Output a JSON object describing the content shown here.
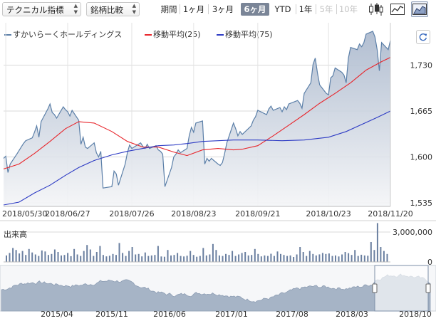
{
  "toolbar": {
    "technical_label": "テクニカル指標",
    "compare_label": "銘柄比較",
    "period_label": "期間",
    "periods": [
      {
        "label": "1ヶ月",
        "state": "normal"
      },
      {
        "label": "3ヶ月",
        "state": "normal"
      },
      {
        "label": "6ヶ月",
        "state": "selected"
      },
      {
        "label": "YTD",
        "state": "normal"
      },
      {
        "label": "1年",
        "state": "normal"
      },
      {
        "label": "5年",
        "state": "disabled"
      },
      {
        "label": "10年",
        "state": "disabled"
      }
    ],
    "icons": [
      "candlestick-icon",
      "line-chart-icon",
      "area-chart-icon"
    ],
    "selected_icon": "area-chart-icon"
  },
  "legend": {
    "price": "すかいらーくホールディングス",
    "ma25": "移動平均(25)",
    "ma75": "移動平均(75)"
  },
  "colors": {
    "price_line": "#5b7fa8",
    "area_top": "#a9b7cc",
    "ma25": "#e8252b",
    "ma75": "#2d3bc4",
    "volume": "#6a7fa0",
    "overview_fill": "#a6b4c6"
  },
  "chart_data": [
    {
      "type": "line",
      "title": "",
      "series": [
        {
          "name": "すかいらーくホールディングス",
          "points": [
            [
              "2018/05/29",
              1598
            ],
            [
              "2018/05/30",
              1601
            ],
            [
              "2018/05/31",
              1578
            ],
            [
              "2018/06/01",
              1590
            ],
            [
              "2018/06/04",
              1604
            ],
            [
              "2018/06/05",
              1609
            ],
            [
              "2018/06/06",
              1614
            ],
            [
              "2018/06/07",
              1619
            ],
            [
              "2018/06/08",
              1623
            ],
            [
              "2018/06/11",
              1627
            ],
            [
              "2018/06/12",
              1635
            ],
            [
              "2018/06/13",
              1644
            ],
            [
              "2018/06/14",
              1628
            ],
            [
              "2018/06/15",
              1650
            ],
            [
              "2018/06/18",
              1668
            ],
            [
              "2018/06/19",
              1675
            ],
            [
              "2018/06/20",
              1663
            ],
            [
              "2018/06/21",
              1660
            ],
            [
              "2018/06/22",
              1655
            ],
            [
              "2018/06/25",
              1671
            ],
            [
              "2018/06/26",
              1667
            ],
            [
              "2018/06/27",
              1664
            ],
            [
              "2018/06/28",
              1658
            ],
            [
              "2018/06/29",
              1666
            ],
            [
              "2018/07/02",
              1652
            ],
            [
              "2018/07/03",
              1618
            ],
            [
              "2018/07/04",
              1628
            ],
            [
              "2018/07/05",
              1614
            ],
            [
              "2018/07/06",
              1612
            ],
            [
              "2018/07/09",
              1620
            ],
            [
              "2018/07/10",
              1606
            ],
            [
              "2018/07/11",
              1600
            ],
            [
              "2018/07/12",
              1608
            ],
            [
              "2018/07/13",
              1556
            ],
            [
              "2018/07/17",
              1558
            ],
            [
              "2018/07/18",
              1580
            ],
            [
              "2018/07/19",
              1576
            ],
            [
              "2018/07/20",
              1560
            ],
            [
              "2018/07/23",
              1590
            ],
            [
              "2018/07/24",
              1606
            ],
            [
              "2018/07/25",
              1617
            ],
            [
              "2018/07/26",
              1612
            ],
            [
              "2018/07/27",
              1614
            ],
            [
              "2018/07/30",
              1620
            ],
            [
              "2018/07/31",
              1615
            ],
            [
              "2018/08/01",
              1612
            ],
            [
              "2018/08/02",
              1618
            ],
            [
              "2018/08/03",
              1612
            ],
            [
              "2018/08/06",
              1616
            ],
            [
              "2018/08/07",
              1610
            ],
            [
              "2018/08/08",
              1608
            ],
            [
              "2018/08/09",
              1604
            ],
            [
              "2018/08/10",
              1558
            ],
            [
              "2018/08/13",
              1585
            ],
            [
              "2018/08/14",
              1600
            ],
            [
              "2018/08/15",
              1604
            ],
            [
              "2018/08/16",
              1610
            ],
            [
              "2018/08/17",
              1606
            ],
            [
              "2018/08/20",
              1612
            ],
            [
              "2018/08/21",
              1630
            ],
            [
              "2018/08/22",
              1642
            ],
            [
              "2018/08/23",
              1635
            ],
            [
              "2018/08/24",
              1648
            ],
            [
              "2018/08/27",
              1651
            ],
            [
              "2018/08/28",
              1590
            ],
            [
              "2018/08/29",
              1598
            ],
            [
              "2018/08/30",
              1594
            ],
            [
              "2018/08/31",
              1598
            ],
            [
              "2018/09/03",
              1590
            ],
            [
              "2018/09/04",
              1588
            ],
            [
              "2018/09/05",
              1592
            ],
            [
              "2018/09/06",
              1605
            ],
            [
              "2018/09/07",
              1620
            ],
            [
              "2018/09/10",
              1648
            ],
            [
              "2018/09/11",
              1640
            ],
            [
              "2018/09/12",
              1630
            ],
            [
              "2018/09/13",
              1636
            ],
            [
              "2018/09/14",
              1632
            ],
            [
              "2018/09/18",
              1644
            ],
            [
              "2018/09/19",
              1652
            ],
            [
              "2018/09/20",
              1657
            ],
            [
              "2018/09/21",
              1666
            ],
            [
              "2018/09/25",
              1660
            ],
            [
              "2018/09/26",
              1668
            ],
            [
              "2018/09/27",
              1672
            ],
            [
              "2018/09/28",
              1666
            ],
            [
              "2018/10/01",
              1670
            ],
            [
              "2018/10/02",
              1664
            ],
            [
              "2018/10/03",
              1671
            ],
            [
              "2018/10/04",
              1667
            ],
            [
              "2018/10/05",
              1675
            ],
            [
              "2018/10/09",
              1680
            ],
            [
              "2018/10/10",
              1676
            ],
            [
              "2018/10/11",
              1669
            ],
            [
              "2018/10/12",
              1690
            ],
            [
              "2018/10/15",
              1705
            ],
            [
              "2018/10/16",
              1731
            ],
            [
              "2018/10/17",
              1740
            ],
            [
              "2018/10/18",
              1719
            ],
            [
              "2018/10/19",
              1702
            ],
            [
              "2018/10/22",
              1690
            ],
            [
              "2018/10/23",
              1688
            ],
            [
              "2018/10/24",
              1712
            ],
            [
              "2018/10/25",
              1715
            ],
            [
              "2018/10/26",
              1726
            ],
            [
              "2018/10/29",
              1720
            ],
            [
              "2018/10/30",
              1716
            ],
            [
              "2018/10/31",
              1705
            ],
            [
              "2018/11/01",
              1740
            ],
            [
              "2018/11/02",
              1755
            ],
            [
              "2018/11/05",
              1752
            ],
            [
              "2018/11/06",
              1760
            ],
            [
              "2018/11/07",
              1756
            ],
            [
              "2018/11/08",
              1762
            ],
            [
              "2018/11/09",
              1774
            ],
            [
              "2018/11/12",
              1778
            ],
            [
              "2018/11/13",
              1770
            ],
            [
              "2018/11/14",
              1752
            ],
            [
              "2018/11/15",
              1722
            ],
            [
              "2018/11/16",
              1762
            ],
            [
              "2018/11/19",
              1752
            ],
            [
              "2018/11/20",
              1765
            ]
          ]
        },
        {
          "name": "移動平均(25)",
          "points": [
            [
              "2018/05/29",
              1583
            ],
            [
              "2018/06/05",
              1590
            ],
            [
              "2018/06/12",
              1605
            ],
            [
              "2018/06/19",
              1622
            ],
            [
              "2018/06/26",
              1640
            ],
            [
              "2018/07/02",
              1650
            ],
            [
              "2018/07/09",
              1648
            ],
            [
              "2018/07/17",
              1636
            ],
            [
              "2018/07/24",
              1622
            ],
            [
              "2018/07/31",
              1614
            ],
            [
              "2018/08/07",
              1614
            ],
            [
              "2018/08/14",
              1607
            ],
            [
              "2018/08/20",
              1602
            ],
            [
              "2018/08/27",
              1610
            ],
            [
              "2018/09/03",
              1612
            ],
            [
              "2018/09/10",
              1610
            ],
            [
              "2018/09/14",
              1611
            ],
            [
              "2018/09/21",
              1616
            ],
            [
              "2018/09/28",
              1630
            ],
            [
              "2018/10/05",
              1645
            ],
            [
              "2018/10/12",
              1660
            ],
            [
              "2018/10/19",
              1676
            ],
            [
              "2018/10/26",
              1690
            ],
            [
              "2018/11/02",
              1705
            ],
            [
              "2018/11/09",
              1723
            ],
            [
              "2018/11/16",
              1735
            ],
            [
              "2018/11/20",
              1741
            ]
          ]
        },
        {
          "name": "移動平均(75)",
          "points": [
            [
              "2018/05/29",
              1532
            ],
            [
              "2018/06/05",
              1536
            ],
            [
              "2018/06/12",
              1549
            ],
            [
              "2018/06/19",
              1560
            ],
            [
              "2018/06/26",
              1574
            ],
            [
              "2018/07/02",
              1585
            ],
            [
              "2018/07/09",
              1595
            ],
            [
              "2018/07/17",
              1603
            ],
            [
              "2018/07/24",
              1608
            ],
            [
              "2018/07/31",
              1612
            ],
            [
              "2018/08/07",
              1616
            ],
            [
              "2018/08/14",
              1617
            ],
            [
              "2018/08/20",
              1619
            ],
            [
              "2018/08/27",
              1622
            ],
            [
              "2018/09/03",
              1623
            ],
            [
              "2018/09/10",
              1624
            ],
            [
              "2018/09/21",
              1624
            ],
            [
              "2018/10/02",
              1623
            ],
            [
              "2018/10/12",
              1624
            ],
            [
              "2018/10/23",
              1628
            ],
            [
              "2018/10/31",
              1636
            ],
            [
              "2018/11/07",
              1646
            ],
            [
              "2018/11/14",
              1656
            ],
            [
              "2018/11/20",
              1665
            ]
          ]
        }
      ],
      "x_start": "2018/05/29",
      "x_end": "2018/11/20",
      "xticks": [
        "2018/05/30",
        "2018/06/27",
        "2018/07/26",
        "2018/08/23",
        "2018/09/21",
        "2018/10/23",
        "2018/11/20"
      ],
      "ylim": [
        1530,
        1790
      ],
      "yticks": [
        1535,
        1600,
        1665,
        1730
      ],
      "ytick_labels": [
        "1,535",
        "1,600",
        "1,665",
        "1,730"
      ],
      "grid": true
    },
    {
      "type": "bar",
      "title": "出来高",
      "ylim": [
        0,
        4000000
      ],
      "yticks": [
        0,
        3000000
      ],
      "ytick_labels": [
        "0",
        "3,000,000"
      ],
      "values": [
        650000,
        900000,
        1400000,
        1200000,
        850000,
        1100000,
        700000,
        1300000,
        950000,
        750000,
        600000,
        1150000,
        1050000,
        700000,
        800000,
        1250000,
        1000000,
        650000,
        700000,
        900000,
        580000,
        1300000,
        750000,
        600000,
        1100000,
        1700000,
        1250000,
        600000,
        1000000,
        1600000,
        700000,
        560000,
        620000,
        800000,
        700000,
        1900000,
        900000,
        600000,
        1100000,
        1500000,
        750000,
        800000,
        560000,
        950000,
        600000,
        650000,
        700000,
        1600000,
        550000,
        520000,
        1200000,
        650000,
        700000,
        900000,
        600000,
        550000,
        620000,
        1100000,
        700000,
        520000,
        600000,
        1400000,
        650000,
        750000,
        1800000,
        1200000,
        650000,
        600000,
        800000,
        700000,
        1100000,
        600000,
        750000,
        900000,
        1000000,
        650000,
        700000,
        1300000,
        800000,
        560000,
        650000,
        600000,
        820000,
        600000,
        1050000,
        800000,
        700000,
        600000,
        650000,
        500000,
        750000,
        1500000,
        1000000,
        600000,
        1100000,
        800000,
        650000,
        760000,
        900000,
        800000,
        850000,
        600000,
        650000,
        550000,
        750000,
        1000000,
        880000,
        700000,
        1200000,
        600000,
        720000,
        650000,
        620000,
        2000000,
        1200000,
        3900000,
        1500000,
        1100000,
        800000
      ]
    }
  ],
  "overview": {
    "xticks": [
      "2015/04",
      "2015/11",
      "2016/06",
      "2017/01",
      "2017/08",
      "2018/03",
      "2018/10"
    ]
  }
}
